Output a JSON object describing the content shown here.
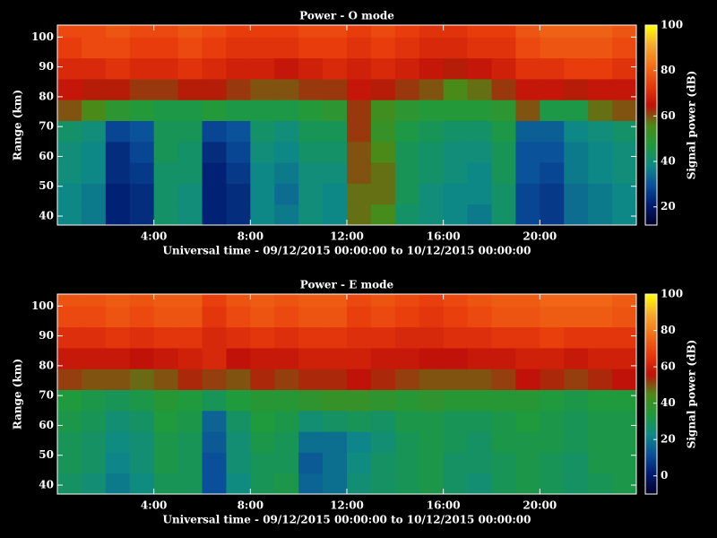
{
  "chart_data": [
    {
      "type": "heatmap",
      "title": "Power - O mode",
      "x_label": "Universal time - 09/12/2015 00:00:00 to 10/12/2015 00:00:00",
      "y_label": "Range (km)",
      "colorbar_label": "Signal power (dB)",
      "xlim": [
        0,
        24
      ],
      "xticks": [
        {
          "value": 4,
          "label": "4:00"
        },
        {
          "value": 8,
          "label": "8:00"
        },
        {
          "value": 12,
          "label": "12:00"
        },
        {
          "value": 16,
          "label": "16:00"
        },
        {
          "value": 20,
          "label": "20:00"
        }
      ],
      "ylim": [
        37,
        104
      ],
      "yticks": [
        40,
        50,
        60,
        70,
        80,
        90,
        100
      ],
      "clim": [
        12,
        100
      ],
      "cticks": [
        20,
        40,
        60,
        80,
        100
      ],
      "colormap": [
        "#000028",
        "#001a6e",
        "#0a4f9a",
        "#0e8a86",
        "#1f9a3c",
        "#4a8a18",
        "#c01208",
        "#e83a0c",
        "#f27018",
        "#f6a830",
        "#ffff00"
      ],
      "x_bins": [
        0,
        1,
        2,
        3,
        4,
        5,
        6,
        7,
        8,
        9,
        10,
        11,
        12,
        13,
        14,
        15,
        16,
        17,
        18,
        19,
        20,
        21,
        22,
        23,
        24
      ],
      "y_bins": [
        37,
        44,
        51,
        58,
        65,
        72,
        79,
        86,
        93,
        100,
        104
      ],
      "z": [
        [
          38,
          36,
          22,
          24,
          42,
          40,
          22,
          24,
          38,
          36,
          40,
          38,
          58,
          55,
          42,
          40,
          38,
          36,
          42,
          28,
          26,
          34,
          36,
          38
        ],
        [
          38,
          36,
          22,
          24,
          42,
          40,
          22,
          24,
          38,
          34,
          40,
          38,
          58,
          58,
          44,
          40,
          38,
          38,
          42,
          28,
          26,
          34,
          36,
          38
        ],
        [
          40,
          38,
          24,
          26,
          42,
          42,
          22,
          26,
          38,
          36,
          40,
          40,
          60,
          58,
          44,
          42,
          40,
          38,
          44,
          30,
          28,
          36,
          38,
          40
        ],
        [
          40,
          38,
          24,
          28,
          44,
          42,
          24,
          28,
          40,
          38,
          42,
          42,
          60,
          56,
          44,
          42,
          40,
          40,
          44,
          30,
          30,
          36,
          38,
          40
        ],
        [
          42,
          40,
          28,
          30,
          44,
          44,
          28,
          30,
          42,
          40,
          44,
          44,
          62,
          52,
          46,
          44,
          42,
          42,
          46,
          32,
          32,
          38,
          40,
          42
        ],
        [
          60,
          56,
          50,
          48,
          46,
          46,
          48,
          46,
          46,
          46,
          48,
          50,
          62,
          54,
          50,
          48,
          48,
          48,
          50,
          60,
          46,
          46,
          58,
          60
        ],
        [
          66,
          64,
          64,
          62,
          62,
          64,
          64,
          62,
          60,
          60,
          62,
          62,
          66,
          64,
          62,
          60,
          56,
          58,
          62,
          66,
          66,
          64,
          66,
          66
        ],
        [
          70,
          70,
          72,
          70,
          70,
          72,
          70,
          68,
          68,
          66,
          68,
          70,
          68,
          70,
          68,
          66,
          64,
          66,
          68,
          72,
          72,
          74,
          74,
          72
        ],
        [
          74,
          76,
          76,
          74,
          74,
          76,
          74,
          72,
          72,
          72,
          74,
          74,
          72,
          74,
          72,
          70,
          70,
          72,
          72,
          76,
          78,
          78,
          78,
          76
        ],
        [
          76,
          76,
          78,
          76,
          76,
          78,
          76,
          74,
          74,
          74,
          76,
          76,
          74,
          76,
          74,
          72,
          72,
          74,
          74,
          78,
          80,
          80,
          80,
          78
        ]
      ]
    },
    {
      "type": "heatmap",
      "title": "Power - E mode",
      "x_label": "Universal time - 09/12/2015 00:00:00 to 10/12/2015 00:00:00",
      "y_label": "Range (km)",
      "colorbar_label": "Signal power (dB)",
      "xlim": [
        0,
        24
      ],
      "xticks": [
        {
          "value": 4,
          "label": "4:00"
        },
        {
          "value": 8,
          "label": "8:00"
        },
        {
          "value": 12,
          "label": "12:00"
        },
        {
          "value": 16,
          "label": "16:00"
        },
        {
          "value": 20,
          "label": "20:00"
        }
      ],
      "ylim": [
        37,
        104
      ],
      "yticks": [
        40,
        50,
        60,
        70,
        80,
        90,
        100
      ],
      "clim": [
        -10,
        100
      ],
      "cticks": [
        0,
        20,
        40,
        60,
        80,
        100
      ],
      "colormap": [
        "#000028",
        "#001a6e",
        "#0a4f9a",
        "#0e8a86",
        "#1f9a3c",
        "#4a8a18",
        "#c01208",
        "#e83a0c",
        "#f27018",
        "#f6a830",
        "#ffff00"
      ],
      "x_bins": [
        0,
        1,
        2,
        3,
        4,
        5,
        6,
        7,
        8,
        9,
        10,
        11,
        12,
        13,
        14,
        15,
        16,
        17,
        18,
        19,
        20,
        21,
        22,
        23,
        24
      ],
      "y_bins": [
        37,
        44,
        51,
        58,
        65,
        72,
        79,
        86,
        93,
        100,
        104
      ],
      "z": [
        [
          28,
          26,
          20,
          24,
          30,
          30,
          12,
          24,
          30,
          32,
          16,
          18,
          26,
          28,
          30,
          32,
          28,
          26,
          30,
          32,
          30,
          28,
          30,
          32
        ],
        [
          30,
          28,
          22,
          26,
          32,
          30,
          12,
          26,
          30,
          30,
          14,
          18,
          24,
          28,
          30,
          32,
          28,
          28,
          30,
          32,
          30,
          28,
          32,
          32
        ],
        [
          30,
          28,
          24,
          26,
          32,
          30,
          14,
          26,
          32,
          30,
          18,
          18,
          22,
          26,
          30,
          32,
          30,
          28,
          32,
          32,
          32,
          30,
          32,
          32
        ],
        [
          32,
          30,
          26,
          28,
          34,
          32,
          16,
          28,
          34,
          32,
          26,
          28,
          30,
          28,
          32,
          32,
          30,
          30,
          32,
          34,
          32,
          30,
          32,
          32
        ],
        [
          34,
          32,
          30,
          32,
          36,
          34,
          30,
          34,
          36,
          36,
          38,
          40,
          40,
          38,
          36,
          38,
          36,
          36,
          36,
          36,
          34,
          32,
          34,
          34
        ],
        [
          52,
          50,
          50,
          48,
          50,
          54,
          52,
          50,
          54,
          52,
          54,
          54,
          56,
          54,
          52,
          50,
          50,
          50,
          52,
          56,
          54,
          52,
          54,
          56
        ],
        [
          58,
          58,
          58,
          56,
          58,
          60,
          62,
          56,
          58,
          58,
          60,
          60,
          60,
          58,
          58,
          56,
          56,
          58,
          58,
          60,
          60,
          58,
          60,
          60
        ],
        [
          64,
          64,
          66,
          64,
          66,
          66,
          62,
          64,
          66,
          64,
          66,
          66,
          64,
          64,
          62,
          62,
          64,
          64,
          66,
          66,
          68,
          66,
          66,
          66
        ],
        [
          70,
          70,
          72,
          70,
          72,
          72,
          66,
          70,
          72,
          70,
          72,
          72,
          68,
          70,
          68,
          66,
          68,
          70,
          72,
          72,
          74,
          74,
          74,
          72
        ],
        [
          72,
          72,
          74,
          72,
          74,
          74,
          68,
          72,
          74,
          72,
          74,
          74,
          70,
          72,
          70,
          68,
          70,
          72,
          74,
          74,
          76,
          76,
          76,
          74
        ]
      ]
    }
  ]
}
